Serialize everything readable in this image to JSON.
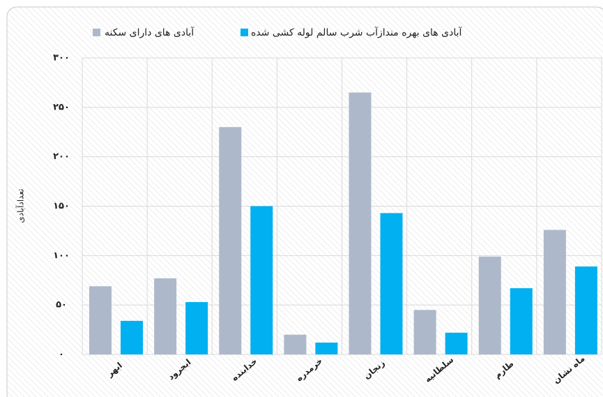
{
  "chart_data": {
    "type": "bar",
    "y_label": "تعدادآبادی",
    "categories": [
      "ابهر",
      "ابجرود",
      "خدابنده",
      "خرمدره",
      "زنجان",
      "سلطانیه",
      "طارم",
      "ماه نشان"
    ],
    "series": [
      {
        "name": "آبادی های دارای سکنه",
        "color": "#adb9ca",
        "values": [
          69,
          77,
          230,
          20,
          265,
          45,
          99,
          126
        ]
      },
      {
        "name": "آبادی های بهره مندازآب شرب سالم لوله کشی شده",
        "color": "#00b0f0",
        "values": [
          34,
          53,
          150,
          12,
          143,
          22,
          67,
          89
        ]
      }
    ],
    "ylim": [
      0,
      300
    ],
    "yticks": [
      {
        "value": 0,
        "label": "۰"
      },
      {
        "value": 50,
        "label": "۵۰"
      },
      {
        "value": 100,
        "label": "۱۰۰"
      },
      {
        "value": 150,
        "label": "۱۵۰"
      },
      {
        "value": 200,
        "label": "۲۰۰"
      },
      {
        "value": 250,
        "label": "۲۵۰"
      },
      {
        "value": 300,
        "label": "۳۰۰"
      }
    ],
    "grid": true
  }
}
